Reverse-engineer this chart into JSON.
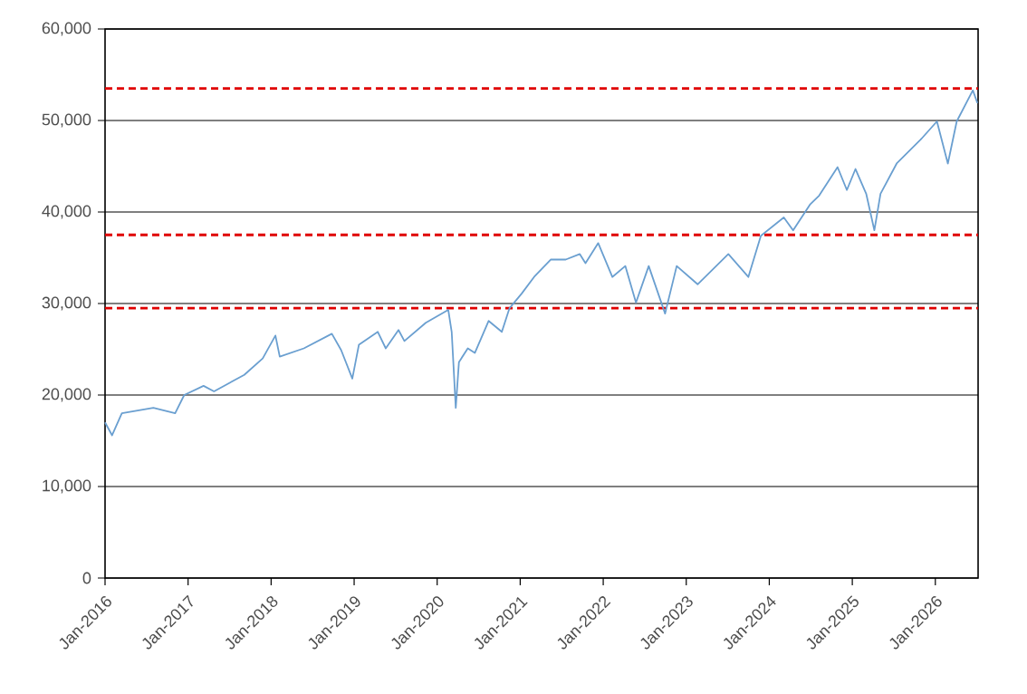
{
  "chart_data": {
    "type": "line",
    "x": [
      "2016-01-01",
      "2016-02-01",
      "2016-03-15",
      "2016-08-01",
      "2016-11-05",
      "2016-12-15",
      "2017-03-10",
      "2017-04-25",
      "2017-09-05",
      "2017-11-25",
      "2018-01-20",
      "2018-02-08",
      "2018-05-25",
      "2018-09-25",
      "2018-11-05",
      "2018-12-24",
      "2019-01-22",
      "2019-04-15",
      "2019-05-20",
      "2019-07-15",
      "2019-08-10",
      "2019-11-12",
      "2020-02-19",
      "2020-03-05",
      "2020-03-23",
      "2020-04-06",
      "2020-05-15",
      "2020-06-15",
      "2020-08-15",
      "2020-10-12",
      "2020-11-15",
      "2021-01-08",
      "2021-03-03",
      "2021-05-15",
      "2021-07-20",
      "2021-09-20",
      "2021-10-15",
      "2021-12-10",
      "2022-02-10",
      "2022-04-08",
      "2022-05-25",
      "2022-07-20",
      "2022-09-30",
      "2022-11-20",
      "2023-02-20",
      "2023-07-05",
      "2023-10-01",
      "2023-11-25",
      "2024-03-05",
      "2024-04-15",
      "2024-06-28",
      "2024-08-08",
      "2024-10-28",
      "2024-12-08",
      "2025-01-15",
      "2025-03-03",
      "2025-04-08",
      "2025-05-05",
      "2025-07-15",
      "2025-10-28",
      "2026-01-08",
      "2026-02-25",
      "2026-04-05",
      "2026-06-15",
      "2026-07-05"
    ],
    "series": [
      {
        "color": "#6a9fd0",
        "values": [
          17000,
          15600,
          18000,
          18600,
          18000,
          20000,
          21000,
          20400,
          22200,
          24000,
          26500,
          24200,
          25100,
          26700,
          24900,
          21800,
          25500,
          26900,
          25100,
          27100,
          25900,
          27900,
          29300,
          26900,
          18600,
          23600,
          25100,
          24600,
          28100,
          26900,
          29500,
          31100,
          32900,
          34800,
          34800,
          35400,
          34400,
          36600,
          32900,
          34100,
          30100,
          34100,
          28900,
          34100,
          32100,
          35400,
          32900,
          37400,
          39400,
          38000,
          40800,
          41800,
          44900,
          42400,
          44700,
          42000,
          38000,
          42000,
          45300,
          47900,
          49900,
          45300,
          49900,
          53300,
          51900
        ]
      }
    ],
    "xlim": [
      "2016-01-01",
      "2026-07-08"
    ],
    "xticks": [
      {
        "value": "2016-01-01",
        "label": "Jan-2016"
      },
      {
        "value": "2017-01-01",
        "label": "Jan-2017"
      },
      {
        "value": "2018-01-01",
        "label": "Jan-2018"
      },
      {
        "value": "2019-01-01",
        "label": "Jan-2019"
      },
      {
        "value": "2020-01-01",
        "label": "Jan-2020"
      },
      {
        "value": "2021-01-01",
        "label": "Jan-2021"
      },
      {
        "value": "2022-01-01",
        "label": "Jan-2022"
      },
      {
        "value": "2023-01-01",
        "label": "Jan-2023"
      },
      {
        "value": "2024-01-01",
        "label": "Jan-2024"
      },
      {
        "value": "2025-01-01",
        "label": "Jan-2025"
      },
      {
        "value": "2026-01-01",
        "label": "Jan-2026"
      }
    ],
    "ylim": [
      0,
      60000
    ],
    "yticks": [
      0,
      {
        "value": 10000,
        "label": "10,000"
      },
      {
        "value": 20000,
        "label": "20,000"
      },
      {
        "value": 30000,
        "label": "30,000"
      },
      {
        "value": 40000,
        "label": "40,000"
      },
      {
        "value": 50000,
        "label": "50,000"
      },
      {
        "value": 60000,
        "label": "60,000"
      }
    ],
    "grid": "y",
    "ref_lines": [
      {
        "axis": "y",
        "value": 53500,
        "color": "#e00000",
        "line_style": "dashed"
      },
      {
        "axis": "y",
        "value": 37500,
        "color": "#e00000",
        "line_style": "dashed"
      },
      {
        "axis": "y",
        "value": 29500,
        "color": "#e00000",
        "line_style": "dashed"
      }
    ]
  }
}
